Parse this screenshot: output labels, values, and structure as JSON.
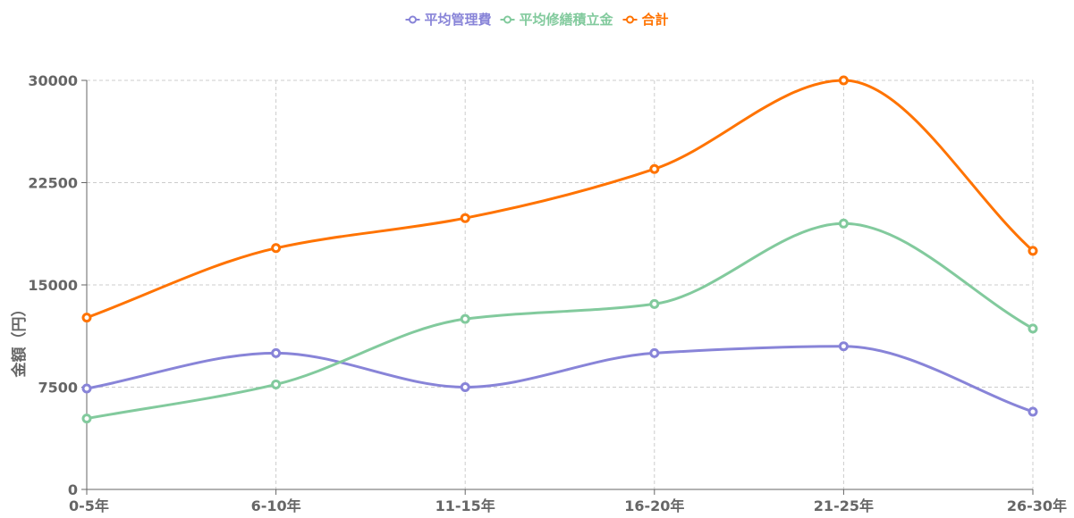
{
  "chart_data": {
    "type": "line",
    "title": "",
    "xlabel": "",
    "ylabel": "金額（円）",
    "categories": [
      "0-5年",
      "6-10年",
      "11-15年",
      "16-20年",
      "21-25年",
      "26-30年"
    ],
    "ylim": [
      0,
      30000
    ],
    "yticks": [
      "0",
      "7500",
      "15000",
      "22500",
      "30000"
    ],
    "grid": true,
    "legend_position": "top-center",
    "series": [
      {
        "name": "平均管理費",
        "color": "#8884d8",
        "values": [
          7400,
          10000,
          7500,
          10000,
          10500,
          5700
        ]
      },
      {
        "name": "平均修繕積立金",
        "color": "#82ca9d",
        "values": [
          5200,
          7700,
          12500,
          13600,
          19500,
          11800
        ]
      },
      {
        "name": "合計",
        "color": "#ff7300",
        "values": [
          12600,
          17700,
          19900,
          23500,
          30000,
          17500
        ]
      }
    ]
  }
}
